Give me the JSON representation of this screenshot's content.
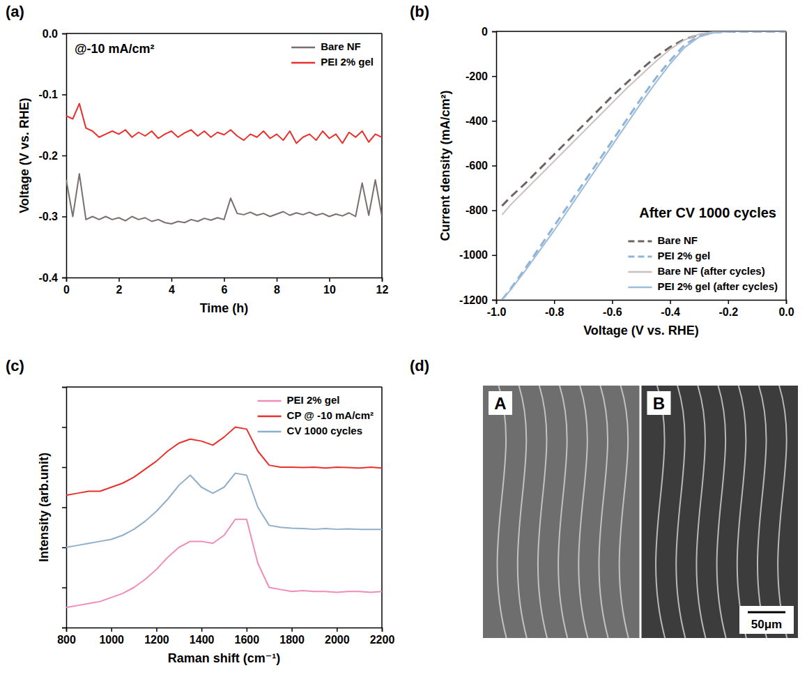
{
  "chart_data": [
    {
      "type": "line",
      "panel": "(a)",
      "annotation": "@-10 mA/cm²",
      "x_label": "Time (h)",
      "y_label": "Voltage (V vs. RHE)",
      "x": [
        0,
        0.25,
        0.5,
        0.75,
        1,
        1.25,
        1.5,
        1.75,
        2,
        2.25,
        2.5,
        2.75,
        3,
        3.25,
        3.5,
        3.75,
        4,
        4.25,
        4.5,
        4.75,
        5,
        5.25,
        5.5,
        5.75,
        6,
        6.25,
        6.5,
        6.75,
        7,
        7.25,
        7.5,
        7.75,
        8,
        8.25,
        8.5,
        8.75,
        9,
        9.25,
        9.5,
        9.75,
        10,
        10.25,
        10.5,
        10.75,
        11,
        11.25,
        11.5,
        11.75,
        12
      ],
      "xlim": [
        0,
        12
      ],
      "xticks": [
        0,
        2,
        4,
        6,
        8,
        10,
        12
      ],
      "ylim": [
        -0.4,
        0
      ],
      "yticks": [
        {
          "value": 0,
          "label": "0.0"
        },
        -0.1,
        -0.2,
        -0.3,
        -0.4
      ],
      "legend": "upper right",
      "series": [
        {
          "name": "Bare NF",
          "color": "#7a6e6e",
          "line_style": "solid",
          "values": [
            -0.24,
            -0.3,
            -0.23,
            -0.305,
            -0.3,
            -0.305,
            -0.3,
            -0.305,
            -0.302,
            -0.307,
            -0.3,
            -0.305,
            -0.302,
            -0.308,
            -0.305,
            -0.31,
            -0.312,
            -0.308,
            -0.31,
            -0.305,
            -0.308,
            -0.303,
            -0.306,
            -0.302,
            -0.305,
            -0.27,
            -0.295,
            -0.297,
            -0.293,
            -0.298,
            -0.295,
            -0.3,
            -0.296,
            -0.292,
            -0.298,
            -0.294,
            -0.297,
            -0.293,
            -0.298,
            -0.295,
            -0.3,
            -0.296,
            -0.299,
            -0.294,
            -0.3,
            -0.245,
            -0.298,
            -0.24,
            -0.3
          ]
        },
        {
          "name": "PEI 2% gel",
          "color": "#e8302c",
          "line_style": "solid",
          "values": [
            -0.135,
            -0.14,
            -0.115,
            -0.155,
            -0.16,
            -0.17,
            -0.165,
            -0.16,
            -0.165,
            -0.158,
            -0.17,
            -0.162,
            -0.168,
            -0.16,
            -0.172,
            -0.165,
            -0.16,
            -0.17,
            -0.163,
            -0.158,
            -0.168,
            -0.16,
            -0.17,
            -0.162,
            -0.166,
            -0.158,
            -0.168,
            -0.175,
            -0.165,
            -0.17,
            -0.16,
            -0.172,
            -0.165,
            -0.175,
            -0.16,
            -0.18,
            -0.17,
            -0.165,
            -0.175,
            -0.16,
            -0.172,
            -0.165,
            -0.18,
            -0.162,
            -0.17,
            -0.16,
            -0.178,
            -0.165,
            -0.17
          ]
        }
      ]
    },
    {
      "type": "line",
      "panel": "(b)",
      "annotation": "After CV 1000 cycles",
      "x_label": "Voltage (V vs. RHE)",
      "y_label": "Current density (mA/cm²)",
      "x": [
        -0.98,
        -0.95,
        -0.9,
        -0.85,
        -0.8,
        -0.75,
        -0.7,
        -0.65,
        -0.6,
        -0.55,
        -0.5,
        -0.45,
        -0.4,
        -0.35,
        -0.3,
        -0.25,
        -0.2,
        -0.15,
        -0.1,
        -0.05,
        0
      ],
      "xlim": [
        -1,
        0
      ],
      "xticks": [
        {
          "value": -1,
          "label": "-1.0"
        },
        -0.8,
        -0.6,
        -0.4,
        -0.2,
        {
          "value": 0,
          "label": "0.0"
        }
      ],
      "ylim": [
        -1200,
        0
      ],
      "yticks": [
        0,
        -200,
        -400,
        -600,
        -800,
        -1000,
        -1200
      ],
      "legend": "lower right",
      "series": [
        {
          "name": "Bare NF",
          "color": "#6f6464",
          "line_style": "dashed",
          "values": [
            -780,
            -740,
            -680,
            -615,
            -550,
            -485,
            -420,
            -355,
            -290,
            -230,
            -170,
            -115,
            -70,
            -35,
            -15,
            -5,
            -1,
            0,
            0,
            0,
            0
          ]
        },
        {
          "name": "PEI 2% gel",
          "color": "#8fb3d9",
          "line_style": "dashed",
          "values": [
            -1200,
            -1150,
            -1060,
            -965,
            -870,
            -775,
            -680,
            -585,
            -490,
            -395,
            -300,
            -210,
            -130,
            -60,
            -20,
            -5,
            -1,
            0,
            0,
            0,
            0
          ]
        },
        {
          "name": "Bare NF (after cycles)",
          "color": "#c9c1c0",
          "line_style": "solid",
          "values": [
            -820,
            -775,
            -710,
            -645,
            -580,
            -515,
            -450,
            -385,
            -320,
            -255,
            -195,
            -135,
            -80,
            -38,
            -12,
            -3,
            0,
            0,
            0,
            0,
            0
          ]
        },
        {
          "name": "PEI 2% gel (after cycles)",
          "color": "#9bbcdc",
          "line_style": "solid",
          "values": [
            -1200,
            -1155,
            -1070,
            -980,
            -890,
            -795,
            -700,
            -605,
            -510,
            -415,
            -320,
            -230,
            -145,
            -72,
            -25,
            -6,
            -1,
            0,
            0,
            0,
            0
          ]
        }
      ]
    },
    {
      "type": "line",
      "panel": "(c)",
      "x_label": "Raman shift (cm⁻¹)",
      "y_label": "Intensity (arb.unit)",
      "x": [
        800,
        850,
        900,
        950,
        1000,
        1050,
        1100,
        1150,
        1200,
        1250,
        1300,
        1350,
        1400,
        1450,
        1500,
        1550,
        1600,
        1650,
        1700,
        1750,
        1800,
        1850,
        1900,
        1950,
        2000,
        2050,
        2100,
        2150,
        2200
      ],
      "xlim": [
        800,
        2200
      ],
      "xticks": [
        800,
        1000,
        1200,
        1400,
        1600,
        1800,
        2000,
        2200
      ],
      "ylim": [
        0,
        6
      ],
      "yticks": [
        0,
        1,
        2,
        3,
        4,
        5,
        6
      ],
      "tick_labels": "x",
      "legend": "upper right",
      "series": [
        {
          "name": "PEI 2% gel",
          "color": "#f08cb8",
          "line_style": "solid",
          "values": [
            0.5,
            0.55,
            0.6,
            0.65,
            0.75,
            0.85,
            1.0,
            1.2,
            1.45,
            1.75,
            2.0,
            2.15,
            2.15,
            2.1,
            2.3,
            2.7,
            2.7,
            1.6,
            1.0,
            0.95,
            0.9,
            0.92,
            0.9,
            0.9,
            0.88,
            0.9,
            0.9,
            0.88,
            0.9
          ]
        },
        {
          "name": "CP @ -10 mA/cm²",
          "color": "#e8302c",
          "line_style": "solid",
          "values": [
            3.3,
            3.35,
            3.4,
            3.4,
            3.5,
            3.6,
            3.75,
            3.95,
            4.15,
            4.4,
            4.6,
            4.7,
            4.65,
            4.55,
            4.75,
            5.0,
            4.95,
            4.4,
            4.05,
            4.0,
            4.0,
            3.99,
            4.0,
            3.98,
            4.0,
            3.99,
            3.98,
            4.0,
            3.98
          ]
        },
        {
          "name": "CV 1000 cycles",
          "color": "#90aecb",
          "line_style": "solid",
          "values": [
            2.0,
            2.05,
            2.1,
            2.15,
            2.2,
            2.3,
            2.45,
            2.65,
            2.9,
            3.2,
            3.55,
            3.8,
            3.5,
            3.35,
            3.5,
            3.85,
            3.8,
            3.0,
            2.55,
            2.5,
            2.48,
            2.47,
            2.45,
            2.47,
            2.45,
            2.46,
            2.45,
            2.45,
            2.45
          ]
        }
      ]
    },
    {
      "type": "image",
      "panel": "(d)",
      "labels": [
        "A",
        "B"
      ],
      "scale_bar": "50μm"
    }
  ]
}
